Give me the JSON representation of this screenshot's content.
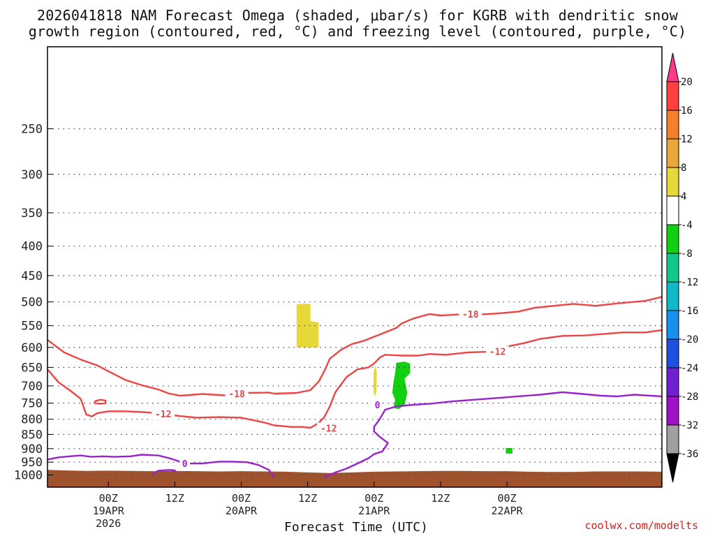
{
  "title_line_1": "2026041818 NAM Forecast Omega (shaded, μbar/s) for KGRB with dendritic snow",
  "title_line_2": "growth region (contoured, red, °C) and freezing level (contoured, purple, °C)",
  "credit": "coolwx.com/modelts",
  "chart_data": {
    "type": "heatmap",
    "xlabel": "Forecast Time (UTC)",
    "x_range_hours": [
      -11,
      100
    ],
    "y_range_hpa": [
      1050,
      180
    ],
    "y_ticks": [
      {
        "label": "250",
        "value": 250
      },
      {
        "label": "300",
        "value": 300
      },
      {
        "label": "350",
        "value": 350
      },
      {
        "label": "400",
        "value": 400
      },
      {
        "label": "450",
        "value": 450
      },
      {
        "label": "500",
        "value": 500
      },
      {
        "label": "550",
        "value": 550
      },
      {
        "label": "600",
        "value": 600
      },
      {
        "label": "650",
        "value": 650
      },
      {
        "label": "700",
        "value": 700
      },
      {
        "label": "750",
        "value": 750
      },
      {
        "label": "800",
        "value": 800
      },
      {
        "label": "850",
        "value": 850
      },
      {
        "label": "900",
        "value": 900
      },
      {
        "label": "950",
        "value": 950
      },
      {
        "label": "1000",
        "value": 1000
      }
    ],
    "x_ticks": [
      {
        "hour": 0,
        "line1": "00Z",
        "line2": "19APR",
        "line3": "2026"
      },
      {
        "hour": 12,
        "line1": "12Z",
        "line2": "",
        "line3": ""
      },
      {
        "hour": 24,
        "line1": "00Z",
        "line2": "20APR",
        "line3": ""
      },
      {
        "hour": 36,
        "line1": "12Z",
        "line2": "",
        "line3": ""
      },
      {
        "hour": 48,
        "line1": "00Z",
        "line2": "21APR",
        "line3": ""
      },
      {
        "hour": 60,
        "line1": "12Z",
        "line2": "",
        "line3": ""
      },
      {
        "hour": 72,
        "line1": "00Z",
        "line2": "22APR",
        "line3": ""
      }
    ],
    "colorbar": {
      "labels": [
        "20",
        "16",
        "12",
        "8",
        "4",
        "-4",
        "-8",
        "-12",
        "-16",
        "-20",
        "-24",
        "-28",
        "-32",
        "-36"
      ],
      "colors": [
        "#ff3a8a",
        "#ff4040",
        "#f4802a",
        "#e8a83a",
        "#e6d838",
        "#ffffff",
        "#10d010",
        "#10c888",
        "#10b8c8",
        "#1890f0",
        "#2050e0",
        "#7020d0",
        "#a010c8",
        "#a0a0a0",
        "#000000"
      ]
    },
    "contours": [
      {
        "name": "-18",
        "kind": "dgz",
        "color": "#ee4444",
        "label_points": [
          [
            23.2,
            722
          ],
          [
            65.4,
            525
          ]
        ],
        "points": [
          [
            -11,
            582
          ],
          [
            -8,
            612
          ],
          [
            -5,
            630
          ],
          [
            -2,
            645
          ],
          [
            0,
            660
          ],
          [
            3,
            683
          ],
          [
            6,
            698
          ],
          [
            9,
            710
          ],
          [
            11,
            722
          ],
          [
            13,
            728
          ],
          [
            17,
            723
          ],
          [
            21,
            727
          ],
          [
            25,
            720
          ],
          [
            29,
            719
          ],
          [
            30,
            722
          ],
          [
            34,
            720
          ],
          [
            36.5,
            712
          ],
          [
            38,
            688
          ],
          [
            39,
            660
          ],
          [
            40,
            628
          ],
          [
            42,
            606
          ],
          [
            44,
            592
          ],
          [
            46,
            585
          ],
          [
            48,
            575
          ],
          [
            50,
            565
          ],
          [
            52,
            555
          ],
          [
            53,
            545
          ],
          [
            55,
            535
          ],
          [
            58,
            525
          ],
          [
            60,
            528
          ],
          [
            63,
            526
          ],
          [
            65,
            527
          ],
          [
            70,
            524
          ],
          [
            74,
            520
          ],
          [
            77,
            512
          ],
          [
            84,
            504
          ],
          [
            88,
            508
          ],
          [
            92,
            503
          ],
          [
            97,
            498
          ],
          [
            100,
            490
          ]
        ]
      },
      {
        "name": "-12",
        "kind": "dgz",
        "color": "#ee4444",
        "label_points": [
          [
            9.9,
            783
          ],
          [
            39.8,
            829
          ],
          [
            70.3,
            610
          ]
        ],
        "points": [
          [
            -11,
            655
          ],
          [
            -9,
            690
          ],
          [
            -7,
            712
          ],
          [
            -5,
            737
          ],
          [
            -4,
            785
          ],
          [
            -3,
            791
          ],
          [
            -2,
            781
          ],
          [
            0,
            775
          ],
          [
            3,
            775
          ],
          [
            6,
            777
          ],
          [
            8,
            780
          ],
          [
            10,
            783
          ],
          [
            13,
            790
          ],
          [
            16,
            795
          ],
          [
            20,
            793
          ],
          [
            24,
            795
          ],
          [
            28,
            810
          ],
          [
            30,
            820
          ],
          [
            33,
            825
          ],
          [
            35,
            825
          ],
          [
            36.5,
            828
          ],
          [
            38,
            812
          ],
          [
            39,
            793
          ],
          [
            40,
            760
          ],
          [
            41,
            718
          ],
          [
            43,
            676
          ],
          [
            45,
            655
          ],
          [
            47,
            650
          ],
          [
            48,
            640
          ],
          [
            49,
            625
          ],
          [
            50,
            618
          ],
          [
            53,
            620
          ],
          [
            56,
            620
          ],
          [
            58,
            616
          ],
          [
            61,
            618
          ],
          [
            65,
            612
          ],
          [
            70,
            610
          ],
          [
            72,
            598
          ],
          [
            75,
            590
          ],
          [
            78,
            580
          ],
          [
            82,
            573
          ],
          [
            86,
            572
          ],
          [
            90,
            568
          ],
          [
            93,
            565
          ],
          [
            97,
            565
          ],
          [
            100,
            560
          ]
        ]
      },
      {
        "name": "",
        "kind": "dgz_ring",
        "color": "#ee4444",
        "label_points": [],
        "points": [
          [
            -2.5,
            745
          ],
          [
            -1.5,
            740
          ],
          [
            -0.5,
            742
          ],
          [
            -0.5,
            750
          ],
          [
            -1.5,
            752
          ],
          [
            -2.5,
            750
          ],
          [
            -2.5,
            745
          ]
        ]
      },
      {
        "name": "0",
        "kind": "freezing",
        "color": "#9922cc",
        "label_points": [
          [
            13.8,
            955
          ],
          [
            48.6,
            755
          ]
        ],
        "points": [
          [
            -11,
            940
          ],
          [
            -9,
            932
          ],
          [
            -7,
            928
          ],
          [
            -5,
            925
          ],
          [
            -3,
            930
          ],
          [
            -1,
            928
          ],
          [
            1,
            930
          ],
          [
            4,
            928
          ],
          [
            6,
            922
          ],
          [
            9,
            925
          ],
          [
            11,
            935
          ],
          [
            14,
            955
          ],
          [
            17,
            955
          ],
          [
            20,
            948
          ],
          [
            22,
            948
          ],
          [
            25,
            950
          ],
          [
            27,
            960
          ],
          [
            29,
            980
          ],
          [
            30,
            1010
          ]
        ]
      },
      {
        "name": "",
        "kind": "freezing",
        "color": "#9922cc",
        "label_points": [],
        "points": [
          [
            8,
            997
          ],
          [
            9,
            983
          ],
          [
            11,
            980
          ],
          [
            12,
            982
          ],
          [
            12.2,
            990
          ]
        ]
      },
      {
        "name": "",
        "kind": "freezing",
        "color": "#9922cc",
        "label_points": [],
        "points": [
          [
            39,
            1010
          ],
          [
            41,
            990
          ],
          [
            43,
            975
          ],
          [
            45,
            955
          ],
          [
            47,
            935
          ],
          [
            48,
            920
          ],
          [
            49.5,
            910
          ],
          [
            50.5,
            880
          ],
          [
            49,
            858
          ],
          [
            48,
            840
          ],
          [
            48,
            825
          ],
          [
            49,
            800
          ],
          [
            50,
            770
          ],
          [
            52,
            760
          ],
          [
            55,
            755
          ],
          [
            58,
            752
          ],
          [
            62,
            745
          ],
          [
            66,
            740
          ],
          [
            70,
            735
          ],
          [
            74,
            730
          ],
          [
            78,
            725
          ],
          [
            82,
            718
          ],
          [
            85,
            722
          ],
          [
            89,
            728
          ],
          [
            92,
            730
          ],
          [
            95,
            725
          ],
          [
            98,
            728
          ],
          [
            100,
            730
          ]
        ]
      }
    ],
    "shaded_regions": [
      {
        "value_range": "4 to 8",
        "color": "#e6d838",
        "points": [
          [
            34,
            505
          ],
          [
            35.5,
            503
          ],
          [
            36.5,
            505
          ],
          [
            36.5,
            540
          ],
          [
            38,
            543
          ],
          [
            38,
            600
          ],
          [
            34,
            600
          ],
          [
            34,
            505
          ]
        ]
      },
      {
        "value_range": "4 to 8",
        "color": "#e6d838",
        "points": [
          [
            47.9,
            665
          ],
          [
            48.2,
            643
          ],
          [
            48.5,
            665
          ],
          [
            48.4,
            718
          ],
          [
            48.1,
            730
          ],
          [
            47.9,
            718
          ],
          [
            47.9,
            665
          ]
        ]
      },
      {
        "value_range": "-4 to -8",
        "color": "#10d010",
        "points": [
          [
            52,
            638
          ],
          [
            53.5,
            635
          ],
          [
            54.5,
            640
          ],
          [
            54.5,
            665
          ],
          [
            53.5,
            680
          ],
          [
            54,
            720
          ],
          [
            53.5,
            755
          ],
          [
            52.5,
            768
          ],
          [
            51.5,
            765
          ],
          [
            51.8,
            740
          ],
          [
            51.3,
            720
          ],
          [
            51.5,
            690
          ],
          [
            51.8,
            665
          ],
          [
            52,
            638
          ]
        ]
      },
      {
        "value_range": "-4 to -8",
        "color": "#10d010",
        "points": [
          [
            71.8,
            898
          ],
          [
            73,
            898
          ],
          [
            73,
            918
          ],
          [
            71.8,
            918
          ],
          [
            71.8,
            898
          ]
        ]
      }
    ],
    "terrain": {
      "color": "#a0522d",
      "points": [
        [
          -11,
          980
        ],
        [
          -8,
          982
        ],
        [
          -4,
          984
        ],
        [
          0,
          983
        ],
        [
          4,
          984
        ],
        [
          8,
          985
        ],
        [
          12,
          984
        ],
        [
          16,
          985
        ],
        [
          20,
          986
        ],
        [
          24,
          985
        ],
        [
          28,
          986
        ],
        [
          32,
          987
        ],
        [
          36,
          990
        ],
        [
          40,
          992
        ],
        [
          44,
          990
        ],
        [
          48,
          987
        ],
        [
          52,
          986
        ],
        [
          56,
          985
        ],
        [
          60,
          984
        ],
        [
          64,
          984
        ],
        [
          68,
          985
        ],
        [
          72,
          985
        ],
        [
          76,
          987
        ],
        [
          80,
          988
        ],
        [
          84,
          988
        ],
        [
          88,
          986
        ],
        [
          92,
          986
        ],
        [
          96,
          986
        ],
        [
          100,
          987
        ]
      ]
    }
  }
}
